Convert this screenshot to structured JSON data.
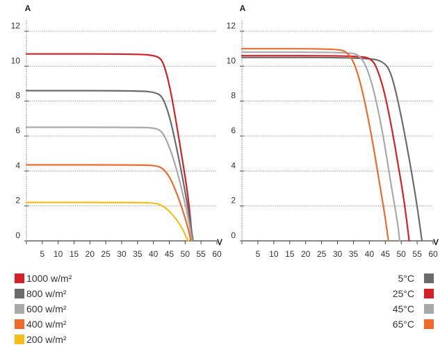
{
  "chart_data": [
    {
      "type": "line",
      "title": "",
      "ylabel": "A",
      "xlabel": "V",
      "xlim": [
        0,
        60
      ],
      "ylim": [
        0,
        12
      ],
      "x_ticks": [
        "5",
        "10",
        "15",
        "20",
        "25",
        "30",
        "35",
        "40",
        "45",
        "50",
        "55",
        "60"
      ],
      "y_ticks": [
        "0",
        "2",
        "4",
        "6",
        "8",
        "10",
        "12"
      ],
      "grid": "horizontal dotted",
      "series": [
        {
          "name": "1000 w/m²",
          "color": "#d42027",
          "points": [
            [
              0,
              10.7
            ],
            [
              35,
              10.7
            ],
            [
              41,
              10.6
            ],
            [
              43,
              10.3
            ],
            [
              45,
              9.0
            ],
            [
              47,
              7.0
            ],
            [
              49,
              4.8
            ],
            [
              51,
              2.5
            ],
            [
              52.3,
              0
            ]
          ]
        },
        {
          "name": "800 w/m²",
          "color": "#6b6b6d",
          "points": [
            [
              0,
              8.6
            ],
            [
              35,
              8.6
            ],
            [
              41,
              8.5
            ],
            [
              43,
              8.2
            ],
            [
              45,
              7.2
            ],
            [
              47,
              5.6
            ],
            [
              49,
              3.8
            ],
            [
              51,
              1.8
            ],
            [
              52.5,
              0
            ]
          ]
        },
        {
          "name": "600 w/m²",
          "color": "#a9a9ab",
          "points": [
            [
              0,
              6.5
            ],
            [
              36,
              6.5
            ],
            [
              41,
              6.45
            ],
            [
              43,
              6.2
            ],
            [
              45,
              5.4
            ],
            [
              47,
              4.3
            ],
            [
              49,
              2.9
            ],
            [
              51,
              1.3
            ],
            [
              52.2,
              0
            ]
          ]
        },
        {
          "name": "400 w/m²",
          "color": "#ef6a2b",
          "points": [
            [
              0,
              4.35
            ],
            [
              37,
              4.35
            ],
            [
              41,
              4.3
            ],
            [
              43,
              4.15
            ],
            [
              45,
              3.7
            ],
            [
              47,
              2.9
            ],
            [
              49,
              1.9
            ],
            [
              51,
              0.7
            ],
            [
              51.8,
              0
            ]
          ]
        },
        {
          "name": "200 w/m²",
          "color": "#f7be1a",
          "points": [
            [
              0,
              2.2
            ],
            [
              37,
              2.2
            ],
            [
              41,
              2.15
            ],
            [
              43,
              2.0
            ],
            [
              45,
              1.7
            ],
            [
              47,
              1.3
            ],
            [
              49,
              0.75
            ],
            [
              50.5,
              0.15
            ],
            [
              51,
              0
            ]
          ]
        }
      ],
      "legend": "bottom-left"
    },
    {
      "type": "line",
      "title": "",
      "ylabel": "A",
      "xlabel": "V",
      "xlim": [
        0,
        60
      ],
      "ylim": [
        0,
        12
      ],
      "x_ticks": [
        "5",
        "10",
        "15",
        "20",
        "25",
        "30",
        "35",
        "40",
        "45",
        "50",
        "55",
        "60"
      ],
      "y_ticks": [
        "0",
        "2",
        "4",
        "6",
        "8",
        "10",
        "12"
      ],
      "grid": "horizontal dotted",
      "series": [
        {
          "name": "5°C",
          "color": "#6b6b6d",
          "points": [
            [
              0,
              10.5
            ],
            [
              40,
              10.5
            ],
            [
              45,
              10.2
            ],
            [
              47,
              9.5
            ],
            [
              49,
              8.0
            ],
            [
              51,
              6.2
            ],
            [
              53,
              4.2
            ],
            [
              55,
              2.0
            ],
            [
              56.5,
              0
            ]
          ]
        },
        {
          "name": "25°C",
          "color": "#d42027",
          "points": [
            [
              0,
              10.6
            ],
            [
              37,
              10.6
            ],
            [
              41,
              10.4
            ],
            [
              43,
              9.6
            ],
            [
              45,
              8.3
            ],
            [
              47,
              6.5
            ],
            [
              49,
              4.4
            ],
            [
              51,
              2.2
            ],
            [
              52.5,
              0
            ]
          ]
        },
        {
          "name": "45°C",
          "color": "#a9a9ab",
          "points": [
            [
              0,
              10.8
            ],
            [
              34,
              10.8
            ],
            [
              37,
              10.6
            ],
            [
              39,
              10.0
            ],
            [
              41,
              8.9
            ],
            [
              43,
              7.3
            ],
            [
              45,
              5.3
            ],
            [
              47,
              3.0
            ],
            [
              49,
              0.9
            ],
            [
              49.5,
              0
            ]
          ]
        },
        {
          "name": "65°C",
          "color": "#ef6a2b",
          "points": [
            [
              0,
              11.0
            ],
            [
              30,
              11.0
            ],
            [
              33,
              10.8
            ],
            [
              35,
              10.3
            ],
            [
              37,
              9.2
            ],
            [
              39,
              7.6
            ],
            [
              41,
              5.7
            ],
            [
              43,
              3.5
            ],
            [
              45,
              1.3
            ],
            [
              46,
              0
            ]
          ]
        }
      ],
      "legend": "bottom-right"
    }
  ]
}
